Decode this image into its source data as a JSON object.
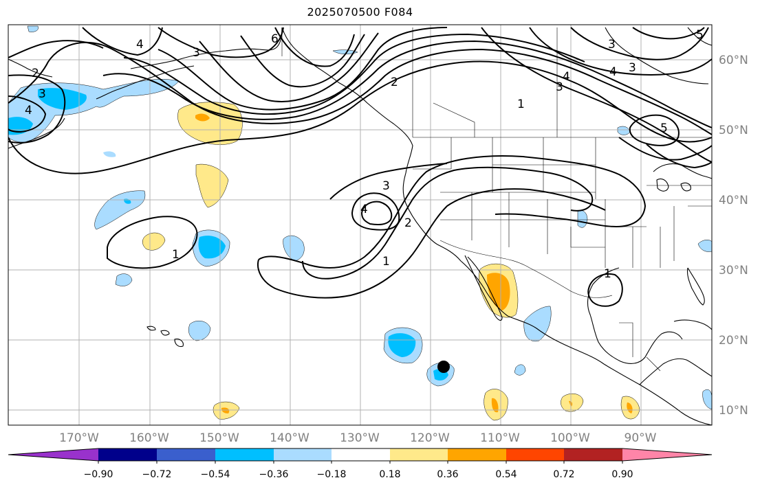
{
  "title": "2025070500 F084",
  "map": {
    "lon_labels": [
      "170°W",
      "160°W",
      "150°W",
      "140°W",
      "130°W",
      "120°W",
      "110°W",
      "100°W",
      "90°W"
    ],
    "lat_labels": [
      "60°N",
      "50°N",
      "40°N",
      "30°N",
      "20°N",
      "10°N"
    ],
    "contour_labels": [
      "2",
      "3",
      "4",
      "3",
      "6",
      "2",
      "1",
      "4",
      "3",
      "5",
      "3",
      "4",
      "3",
      "2",
      "1",
      "1",
      "3",
      "4",
      "5",
      "4",
      "1"
    ],
    "colors": {
      "contour": "#000000",
      "grid": "#b0b0b0",
      "coast": "#000000",
      "neg_strong": "#00bfff",
      "neg_weak": "#aadcff",
      "pos_weak": "#ffe98a",
      "pos_strong": "#ffa500",
      "marker": "#000000"
    }
  },
  "colorbar": {
    "tick_labels": [
      "−0.90",
      "−0.72",
      "−0.54",
      "−0.36",
      "−0.18",
      "0.18",
      "0.36",
      "0.54",
      "0.72",
      "0.90"
    ],
    "colors": [
      "#9932cc",
      "#00008b",
      "#3a5fcd",
      "#00bfff",
      "#aadcff",
      "#ffffff",
      "#ffe98a",
      "#ffa500",
      "#ff4500",
      "#b22222",
      "#ff85a8"
    ]
  }
}
